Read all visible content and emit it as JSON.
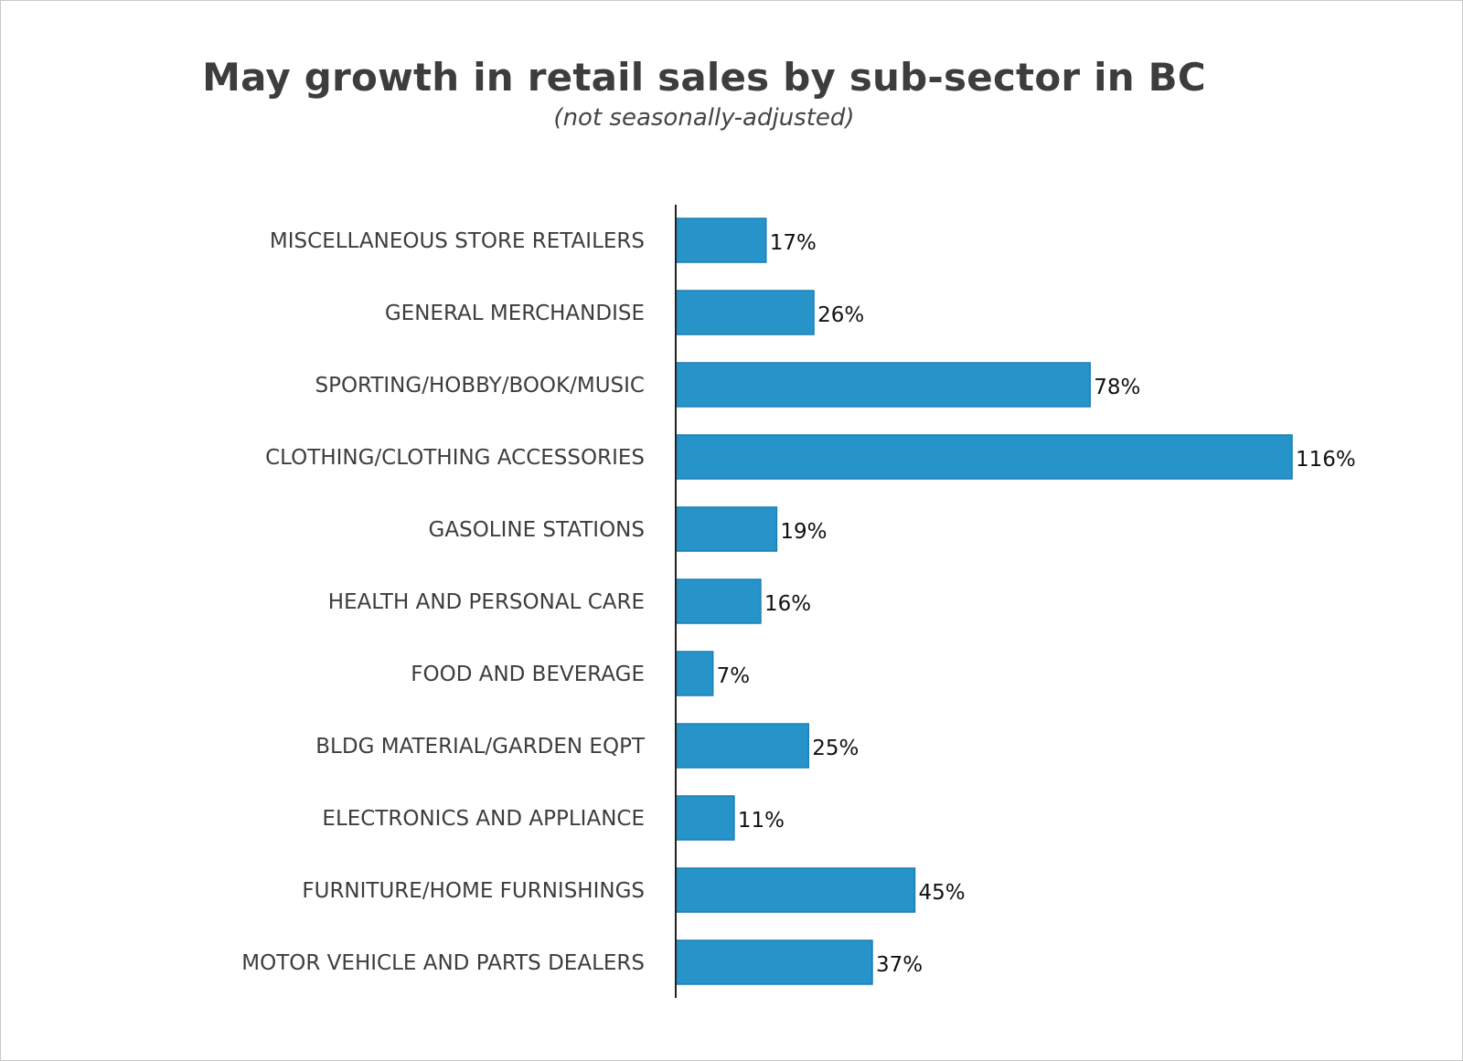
{
  "chart_data": {
    "type": "bar",
    "orientation": "horizontal",
    "title": "May growth in retail sales by sub-sector in BC",
    "subtitle": "(not seasonally-adjusted)",
    "categories": [
      "MISCELLANEOUS STORE RETAILERS",
      "GENERAL MERCHANDISE",
      "SPORTING/HOBBY/BOOK/MUSIC",
      "CLOTHING/CLOTHING ACCESSORIES",
      "GASOLINE STATIONS",
      "HEALTH AND PERSONAL CARE",
      "FOOD AND BEVERAGE",
      "BLDG MATERIAL/GARDEN EQPT",
      "ELECTRONICS AND APPLIANCE",
      "FURNITURE/HOME FURNISHINGS",
      "MOTOR VEHICLE AND PARTS DEALERS"
    ],
    "values": [
      17,
      26,
      78,
      116,
      19,
      16,
      7,
      25,
      11,
      45,
      37
    ],
    "value_labels": [
      "17%",
      "26%",
      "78%",
      "116%",
      "19%",
      "16%",
      "7%",
      "25%",
      "11%",
      "45%",
      "37%"
    ],
    "unit": "%",
    "xlim": [
      0,
      116
    ],
    "grid": false,
    "legend": "none",
    "bar_color": "#2694c8",
    "bar_edge_color": "#1a7fb5"
  }
}
